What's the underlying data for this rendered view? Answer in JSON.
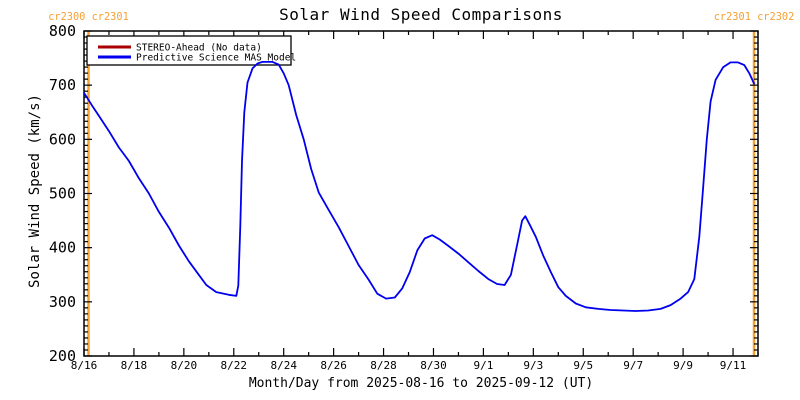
{
  "title": "Solar Wind Speed Comparisons",
  "carrington": {
    "left_label": "cr2300 cr2301",
    "right_label": "cr2301 cr2302",
    "color": "#F5A033",
    "boundaries_days": [
      0.18,
      26.84
    ]
  },
  "axes": {
    "y_title": "Solar Wind Speed (km/s)",
    "x_title": "Month/Day from 2025-08-16 to 2025-09-12 (UT)",
    "y_tick_values": [
      200,
      300,
      400,
      500,
      600,
      700,
      800
    ],
    "x_tick_labels": [
      "8/16",
      "8/18",
      "8/20",
      "8/22",
      "8/24",
      "8/26",
      "8/28",
      "8/30",
      "9/1",
      "9/3",
      "9/5",
      "9/7",
      "9/9",
      "9/11"
    ]
  },
  "legend": {
    "items": [
      {
        "label": "STEREO-Ahead (No data)",
        "color": "#AA0000"
      },
      {
        "label": "Predictive Science MAS Model",
        "color": "#0000EE"
      }
    ]
  },
  "chart_data": {
    "type": "line",
    "title": "Solar Wind Speed Comparisons",
    "xlabel": "Month/Day from 2025-08-16 to 2025-09-12 (UT)",
    "ylabel": "Solar Wind Speed (km/s)",
    "x_unit": "days since 2025-08-16 00:00 UT",
    "xlim": [
      0,
      27
    ],
    "ylim": [
      200,
      800
    ],
    "y_major_step": 100,
    "y_minor_per_major": 9,
    "x_major_step_days": 2,
    "x_minor_step_days": 1,
    "grid": false,
    "legend_position": "top-left-inside",
    "series": [
      {
        "name": "STEREO-Ahead (No data)",
        "color": "#AA0000",
        "points": []
      },
      {
        "name": "Predictive Science MAS Model",
        "color": "#0000EE",
        "points": [
          [
            0,
            686
          ],
          [
            0.3,
            664
          ],
          [
            0.6,
            643
          ],
          [
            1.0,
            615
          ],
          [
            1.4,
            585
          ],
          [
            1.8,
            560
          ],
          [
            2.2,
            528
          ],
          [
            2.6,
            500
          ],
          [
            3.0,
            466
          ],
          [
            3.4,
            437
          ],
          [
            3.8,
            404
          ],
          [
            4.2,
            375
          ],
          [
            4.6,
            350
          ],
          [
            4.9,
            331
          ],
          [
            5.3,
            318
          ],
          [
            5.8,
            313
          ],
          [
            6.1,
            311
          ],
          [
            6.18,
            330
          ],
          [
            6.26,
            440
          ],
          [
            6.33,
            560
          ],
          [
            6.42,
            650
          ],
          [
            6.55,
            705
          ],
          [
            6.75,
            731
          ],
          [
            6.95,
            740
          ],
          [
            7.15,
            743
          ],
          [
            7.55,
            743
          ],
          [
            7.8,
            738
          ],
          [
            8.0,
            722
          ],
          [
            8.2,
            700
          ],
          [
            8.5,
            645
          ],
          [
            8.8,
            600
          ],
          [
            9.1,
            545
          ],
          [
            9.4,
            502
          ],
          [
            9.8,
            470
          ],
          [
            10.2,
            438
          ],
          [
            10.6,
            403
          ],
          [
            11.0,
            368
          ],
          [
            11.4,
            341
          ],
          [
            11.75,
            315
          ],
          [
            12.1,
            306
          ],
          [
            12.45,
            308
          ],
          [
            12.75,
            325
          ],
          [
            13.05,
            355
          ],
          [
            13.35,
            395
          ],
          [
            13.65,
            417
          ],
          [
            13.95,
            423
          ],
          [
            14.25,
            415
          ],
          [
            14.6,
            403
          ],
          [
            15.0,
            389
          ],
          [
            15.4,
            373
          ],
          [
            15.8,
            357
          ],
          [
            16.2,
            342
          ],
          [
            16.55,
            333
          ],
          [
            16.85,
            331
          ],
          [
            17.1,
            350
          ],
          [
            17.35,
            405
          ],
          [
            17.55,
            450
          ],
          [
            17.68,
            458
          ],
          [
            17.85,
            443
          ],
          [
            18.1,
            420
          ],
          [
            18.4,
            385
          ],
          [
            18.7,
            355
          ],
          [
            19.0,
            327
          ],
          [
            19.3,
            311
          ],
          [
            19.7,
            297
          ],
          [
            20.1,
            290
          ],
          [
            20.6,
            287
          ],
          [
            21.1,
            285
          ],
          [
            21.6,
            284
          ],
          [
            22.1,
            283
          ],
          [
            22.6,
            284
          ],
          [
            23.1,
            287
          ],
          [
            23.5,
            294
          ],
          [
            23.9,
            306
          ],
          [
            24.2,
            318
          ],
          [
            24.45,
            342
          ],
          [
            24.65,
            420
          ],
          [
            24.8,
            510
          ],
          [
            24.95,
            600
          ],
          [
            25.1,
            670
          ],
          [
            25.3,
            710
          ],
          [
            25.6,
            733
          ],
          [
            25.9,
            742
          ],
          [
            26.2,
            742
          ],
          [
            26.45,
            737
          ],
          [
            26.65,
            722
          ],
          [
            26.84,
            703
          ]
        ]
      }
    ],
    "annotations": [
      {
        "type": "vline",
        "x_day": 0.18,
        "label": "carrington rotation boundary cr2300/cr2301",
        "color": "#F5A033"
      },
      {
        "type": "vline",
        "x_day": 26.84,
        "label": "carrington rotation boundary cr2301/cr2302",
        "color": "#F5A033"
      }
    ]
  }
}
